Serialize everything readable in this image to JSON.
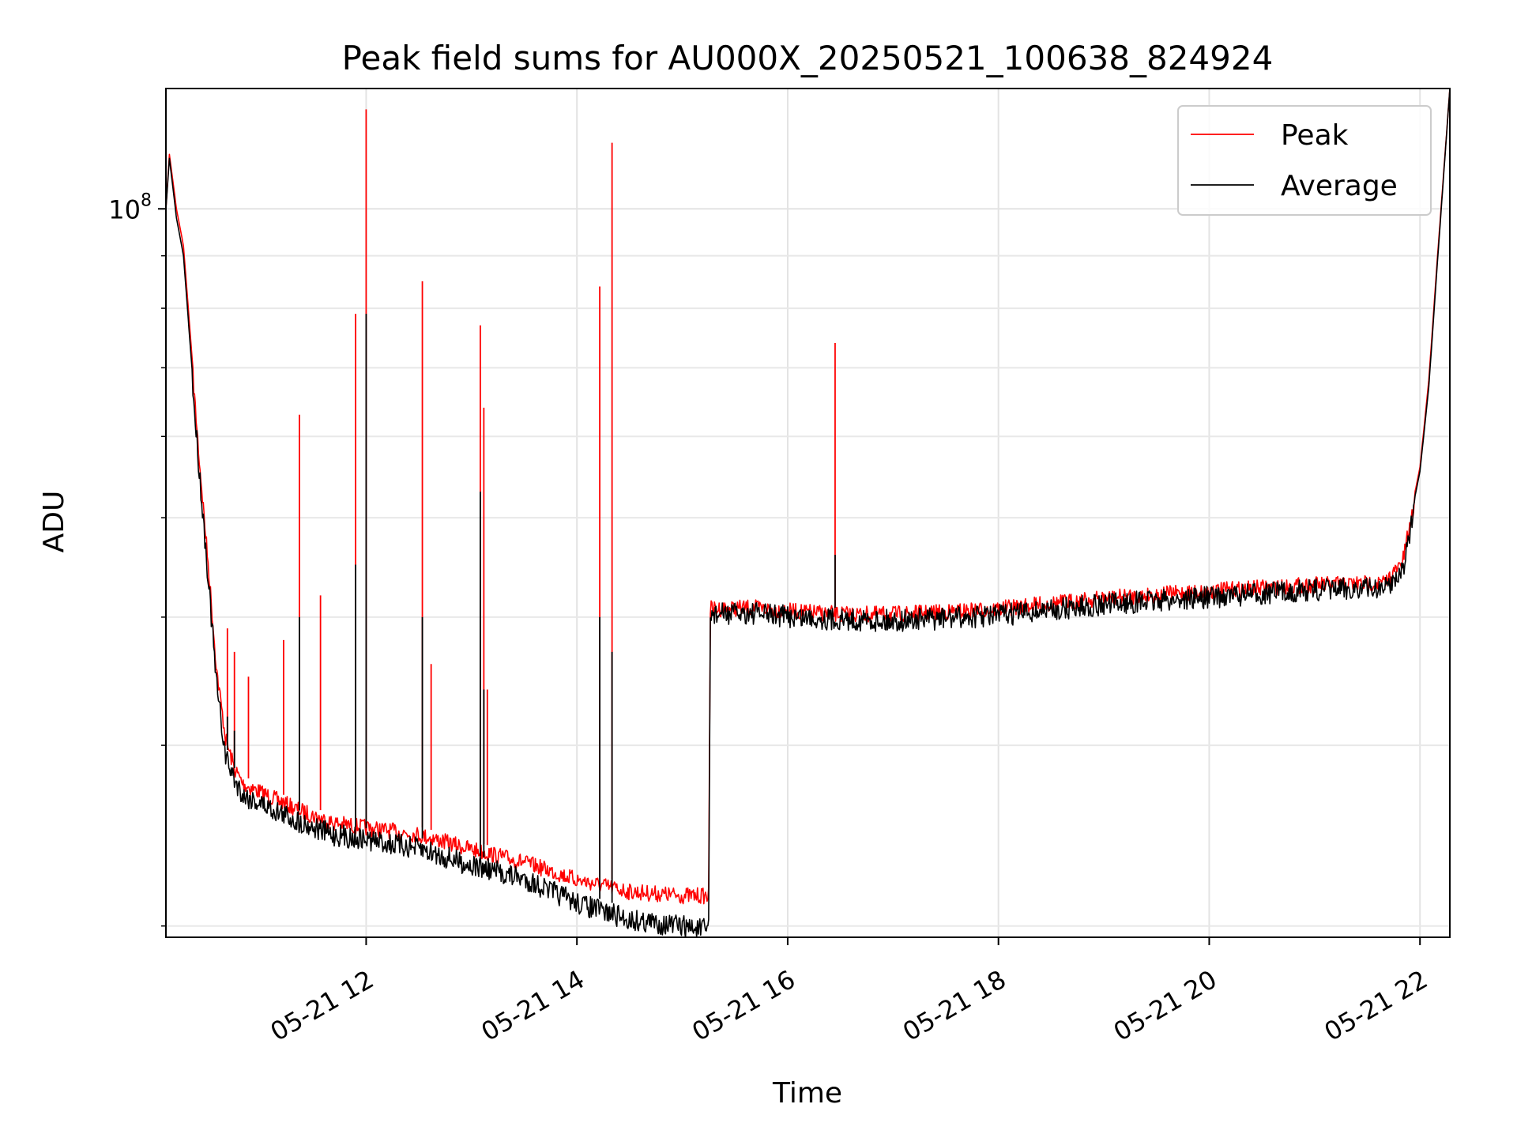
{
  "chart_data": {
    "type": "line",
    "title": "Peak field sums for AU000X_20250521_100638_824924",
    "xlabel": "Time",
    "ylabel": "ADU",
    "y_scale": "log",
    "ylim": [
      19500000,
      131000000
    ],
    "xlim": [
      "2025-05-21 10:06",
      "2025-05-21 22:17"
    ],
    "grid": true,
    "legend_position": "top-right",
    "x_tick_labels": [
      "05-21 12",
      "05-21 14",
      "05-21 16",
      "05-21 18",
      "05-21 20",
      "05-21 22"
    ],
    "x_ticks": [
      "2025-05-21 12:00",
      "2025-05-21 14:00",
      "2025-05-21 16:00",
      "2025-05-21 18:00",
      "2025-05-21 20:00",
      "2025-05-21 22:00"
    ],
    "y_tick_labels": [
      {
        "base": "10",
        "exp": "8",
        "value": 100000000
      }
    ],
    "y_minor_ticks": [
      20000000,
      30000000,
      40000000,
      50000000,
      60000000,
      70000000,
      80000000,
      90000000
    ],
    "series": [
      {
        "name": "Peak",
        "color": "#ff0000",
        "points": [
          [
            "2025-05-21 10:06",
            100000000
          ],
          [
            "2025-05-21 10:08",
            113000000
          ],
          [
            "2025-05-21 10:12",
            100000000
          ],
          [
            "2025-05-21 10:16",
            92000000
          ],
          [
            "2025-05-21 10:20",
            75000000
          ],
          [
            "2025-05-21 10:25",
            58000000
          ],
          [
            "2025-05-21 10:30",
            46000000
          ],
          [
            "2025-05-21 10:35",
            36000000
          ],
          [
            "2025-05-21 10:40",
            31000000
          ],
          [
            "2025-05-21 10:45",
            29000000
          ],
          [
            "2025-05-21 10:50",
            28000000
          ],
          [
            "2025-05-21 11:00",
            27500000
          ],
          [
            "2025-05-21 11:20",
            26500000
          ],
          [
            "2025-05-21 11:40",
            25700000
          ],
          [
            "2025-05-21 12:00",
            25400000
          ],
          [
            "2025-05-21 12:30",
            25000000
          ],
          [
            "2025-05-21 13:00",
            24200000
          ],
          [
            "2025-05-21 13:30",
            23500000
          ],
          [
            "2025-05-21 14:00",
            22600000
          ],
          [
            "2025-05-21 14:30",
            22000000
          ],
          [
            "2025-05-21 15:00",
            21800000
          ],
          [
            "2025-05-21 15:15",
            21800000
          ],
          [
            "2025-05-21 15:16",
            41500000
          ],
          [
            "2025-05-21 15:40",
            41600000
          ],
          [
            "2025-05-21 16:00",
            41300000
          ],
          [
            "2025-05-21 16:30",
            41000000
          ],
          [
            "2025-05-21 17:00",
            41000000
          ],
          [
            "2025-05-21 17:30",
            41200000
          ],
          [
            "2025-05-21 18:00",
            41500000
          ],
          [
            "2025-05-21 19:00",
            42500000
          ],
          [
            "2025-05-21 20:00",
            43200000
          ],
          [
            "2025-05-21 21:00",
            43800000
          ],
          [
            "2025-05-21 21:40",
            44000000
          ],
          [
            "2025-05-21 21:50",
            46000000
          ],
          [
            "2025-05-21 22:00",
            56000000
          ],
          [
            "2025-05-21 22:05",
            68000000
          ],
          [
            "2025-05-21 22:10",
            90000000
          ],
          [
            "2025-05-21 22:17",
            131000000
          ]
        ],
        "spikes": [
          [
            "2025-05-21 10:41",
            39000000
          ],
          [
            "2025-05-21 10:45",
            37000000
          ],
          [
            "2025-05-21 10:53",
            35000000
          ],
          [
            "2025-05-21 11:13",
            38000000
          ],
          [
            "2025-05-21 11:22",
            63000000
          ],
          [
            "2025-05-21 11:34",
            42000000
          ],
          [
            "2025-05-21 11:54",
            79000000
          ],
          [
            "2025-05-21 12:00",
            125000000
          ],
          [
            "2025-05-21 12:32",
            85000000
          ],
          [
            "2025-05-21 12:37",
            36000000
          ],
          [
            "2025-05-21 13:05",
            77000000
          ],
          [
            "2025-05-21 13:07",
            64000000
          ],
          [
            "2025-05-21 13:09",
            34000000
          ],
          [
            "2025-05-21 14:13",
            84000000
          ],
          [
            "2025-05-21 14:20",
            116000000
          ],
          [
            "2025-05-21 16:27",
            74000000
          ],
          [
            "2025-05-21 21:50",
            46000000
          ]
        ]
      },
      {
        "name": "Average",
        "color": "#000000",
        "points": [
          [
            "2025-05-21 10:06",
            100000000
          ],
          [
            "2025-05-21 10:08",
            112000000
          ],
          [
            "2025-05-21 10:12",
            98000000
          ],
          [
            "2025-05-21 10:16",
            90000000
          ],
          [
            "2025-05-21 10:20",
            73000000
          ],
          [
            "2025-05-21 10:25",
            57000000
          ],
          [
            "2025-05-21 10:30",
            45000000
          ],
          [
            "2025-05-21 10:35",
            35000000
          ],
          [
            "2025-05-21 10:40",
            30000000
          ],
          [
            "2025-05-21 10:45",
            28500000
          ],
          [
            "2025-05-21 10:50",
            27500000
          ],
          [
            "2025-05-21 11:00",
            27000000
          ],
          [
            "2025-05-21 11:20",
            26000000
          ],
          [
            "2025-05-21 11:40",
            25200000
          ],
          [
            "2025-05-21 12:00",
            24900000
          ],
          [
            "2025-05-21 12:30",
            24400000
          ],
          [
            "2025-05-21 13:00",
            23500000
          ],
          [
            "2025-05-21 13:30",
            22800000
          ],
          [
            "2025-05-21 14:00",
            21600000
          ],
          [
            "2025-05-21 14:30",
            20800000
          ],
          [
            "2025-05-21 15:00",
            20500000
          ],
          [
            "2025-05-21 15:15",
            20300000
          ],
          [
            "2025-05-21 15:16",
            41300000
          ],
          [
            "2025-05-21 15:40",
            41400000
          ],
          [
            "2025-05-21 16:00",
            41100000
          ],
          [
            "2025-05-21 16:30",
            40800000
          ],
          [
            "2025-05-21 17:00",
            40700000
          ],
          [
            "2025-05-21 17:30",
            40900000
          ],
          [
            "2025-05-21 18:00",
            41200000
          ],
          [
            "2025-05-21 19:00",
            42200000
          ],
          [
            "2025-05-21 20:00",
            42900000
          ],
          [
            "2025-05-21 21:00",
            43600000
          ],
          [
            "2025-05-21 21:40",
            43800000
          ],
          [
            "2025-05-21 21:50",
            45500000
          ],
          [
            "2025-05-21 22:00",
            55500000
          ],
          [
            "2025-05-21 22:05",
            67000000
          ],
          [
            "2025-05-21 22:10",
            89000000
          ],
          [
            "2025-05-21 22:17",
            131000000
          ]
        ],
        "spikes": [
          [
            "2025-05-21 10:41",
            32000000
          ],
          [
            "2025-05-21 10:45",
            31000000
          ],
          [
            "2025-05-21 11:22",
            40000000
          ],
          [
            "2025-05-21 11:54",
            45000000
          ],
          [
            "2025-05-21 12:00",
            79000000
          ],
          [
            "2025-05-21 12:32",
            40000000
          ],
          [
            "2025-05-21 13:05",
            53000000
          ],
          [
            "2025-05-21 13:07",
            34000000
          ],
          [
            "2025-05-21 14:13",
            40000000
          ],
          [
            "2025-05-21 14:20",
            37000000
          ],
          [
            "2025-05-21 16:27",
            46000000
          ]
        ]
      }
    ]
  }
}
